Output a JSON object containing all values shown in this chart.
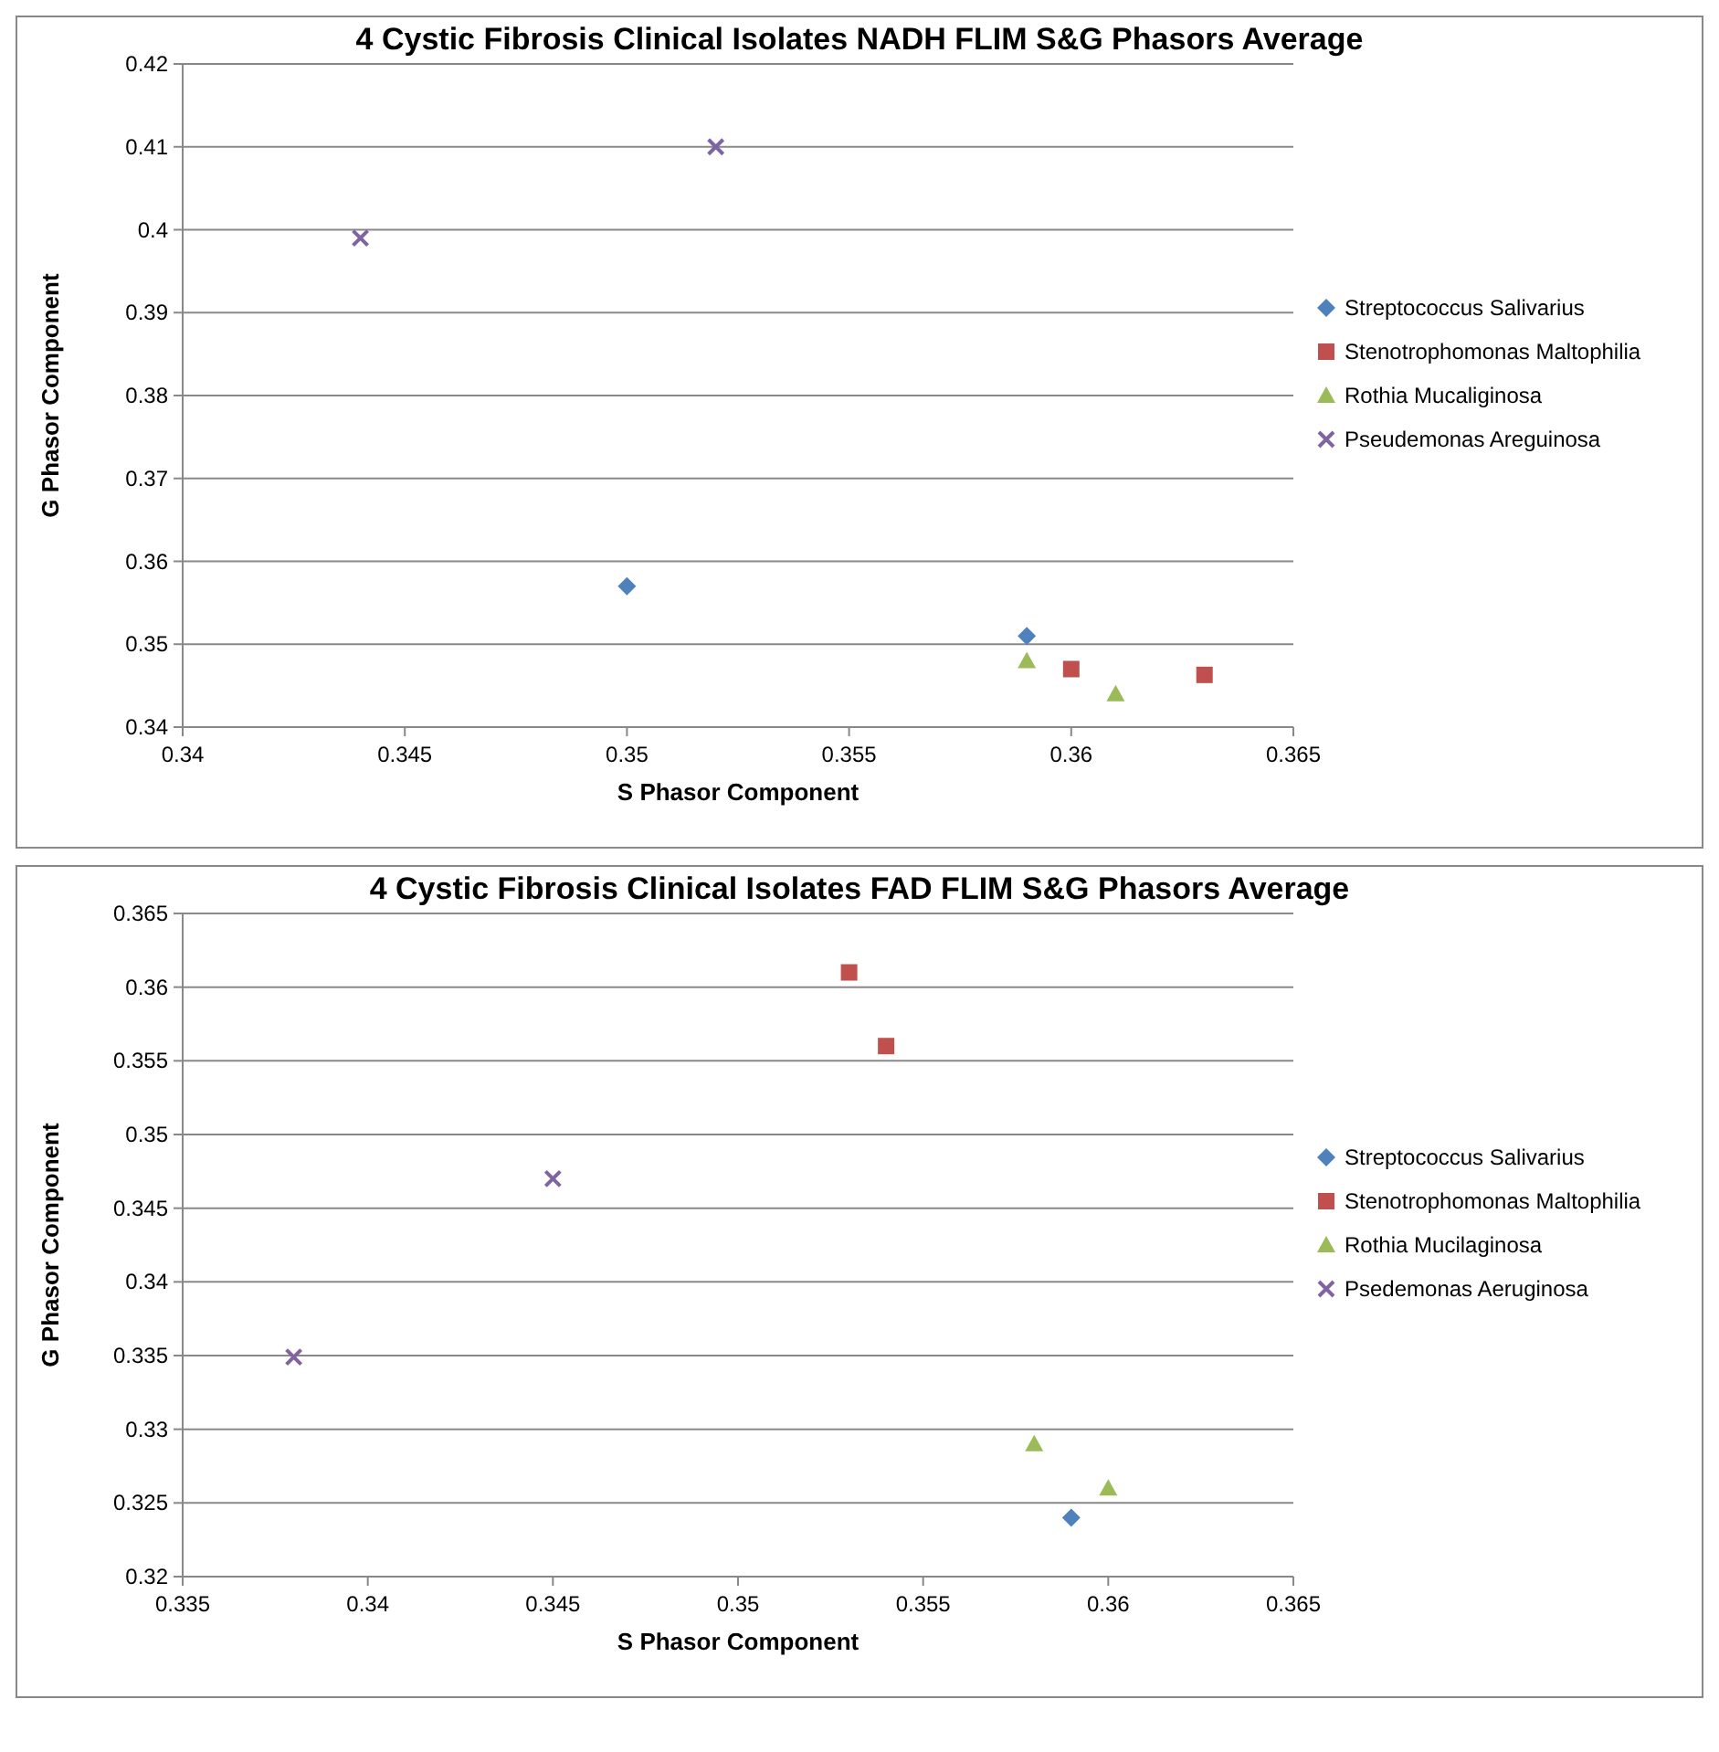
{
  "chart_data": [
    {
      "type": "scatter",
      "title": "4 Cystic Fibrosis Clinical Isolates NADH FLIM S&G Phasors Average",
      "xlabel": "S Phasor Component",
      "ylabel": "G Phasor Component",
      "xlim": [
        0.34,
        0.365
      ],
      "xticks": [
        0.34,
        0.345,
        0.35,
        0.355,
        0.36,
        0.365
      ],
      "ylim": [
        0.34,
        0.42
      ],
      "yticks": [
        0.34,
        0.35,
        0.36,
        0.37,
        0.38,
        0.39,
        0.4,
        0.41,
        0.42
      ],
      "grid": "y",
      "legend": "right",
      "series": [
        {
          "name": "Streptococcus Salivarius",
          "color": "#4f81bd",
          "marker": "diamond",
          "x": [
            0.35,
            0.359
          ],
          "values": [
            0.357,
            0.351
          ]
        },
        {
          "name": "Stenotrophomonas Maltophilia",
          "color": "#c0504d",
          "marker": "square",
          "x": [
            0.36,
            0.363
          ],
          "values": [
            0.347,
            0.3463
          ]
        },
        {
          "name": "Rothia Mucaliginosa",
          "color": "#9bbb59",
          "marker": "triangle",
          "x": [
            0.359,
            0.361
          ],
          "values": [
            0.348,
            0.344
          ]
        },
        {
          "name": "Pseudemonas Areguinosa",
          "color": "#8064a2",
          "marker": "cross",
          "x": [
            0.344,
            0.352
          ],
          "values": [
            0.399,
            0.41
          ]
        }
      ]
    },
    {
      "type": "scatter",
      "title": "4 Cystic Fibrosis Clinical Isolates FAD FLIM S&G Phasors Average",
      "xlabel": "S Phasor Component",
      "ylabel": "G Phasor Component",
      "xlim": [
        0.335,
        0.365
      ],
      "xticks": [
        0.335,
        0.34,
        0.345,
        0.35,
        0.355,
        0.36,
        0.365
      ],
      "ylim": [
        0.32,
        0.365
      ],
      "yticks": [
        0.32,
        0.325,
        0.33,
        0.335,
        0.34,
        0.345,
        0.35,
        0.355,
        0.36,
        0.365
      ],
      "grid": "y",
      "legend": "right",
      "series": [
        {
          "name": "Streptococcus Salivarius",
          "color": "#4f81bd",
          "marker": "diamond",
          "x": [
            0.359
          ],
          "values": [
            0.324
          ]
        },
        {
          "name": "Stenotrophomonas Maltophilia",
          "color": "#c0504d",
          "marker": "square",
          "x": [
            0.353,
            0.354
          ],
          "values": [
            0.361,
            0.356
          ]
        },
        {
          "name": "Rothia Mucilaginosa",
          "color": "#9bbb59",
          "marker": "triangle",
          "x": [
            0.358,
            0.36
          ],
          "values": [
            0.329,
            0.326
          ]
        },
        {
          "name": "Psedemonas Aeruginosa",
          "color": "#8064a2",
          "marker": "cross",
          "x": [
            0.338,
            0.345
          ],
          "values": [
            0.3349,
            0.347
          ]
        }
      ]
    }
  ]
}
